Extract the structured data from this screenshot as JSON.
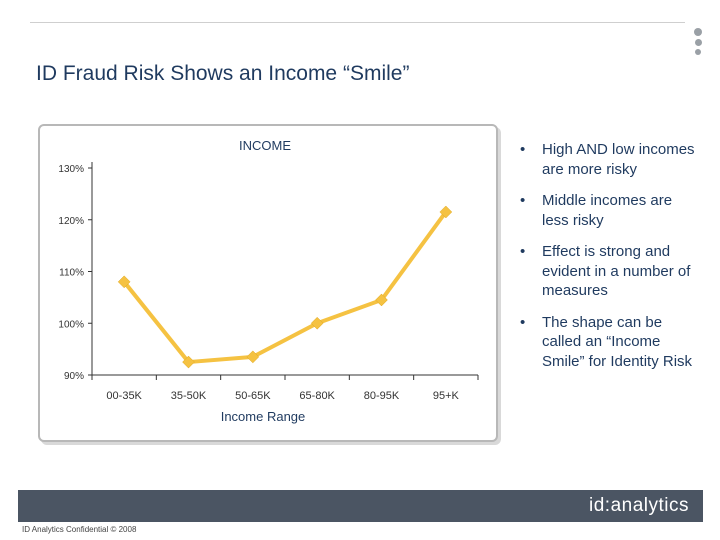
{
  "slide": {
    "title": "ID Fraud Risk Shows an Income “Smile”",
    "footer_text": "ID Analytics Confidential © 2008",
    "logo_text": "id:analytics"
  },
  "bullets": [
    "High AND low incomes are more risky",
    "Middle incomes are less risky",
    "Effect is strong and evident in a number of measures",
    "The shape can be called an “Income Smile” for Identity Risk"
  ],
  "colors": {
    "line": "#f5c242",
    "title": "#1f3a5f",
    "footer_bar": "#4b5563",
    "axis": "#333333"
  },
  "icons": {
    "bullet": "bullet-dot-icon",
    "menu": "vertical-dots-icon"
  },
  "chart_data": {
    "type": "line",
    "title": "INCOME",
    "xlabel": "Income Range",
    "ylabel": "",
    "categories": [
      "00-35K",
      "35-50K",
      "50-65K",
      "65-80K",
      "80-95K",
      "95+K"
    ],
    "y_tick_labels": [
      "90%",
      "100%",
      "110%",
      "120%",
      "130%"
    ],
    "series": [
      {
        "values": [
          108,
          92.5,
          93.5,
          100,
          104.5,
          121.5
        ]
      }
    ],
    "ylim": [
      90,
      130
    ],
    "grid": false,
    "legend": "none"
  }
}
